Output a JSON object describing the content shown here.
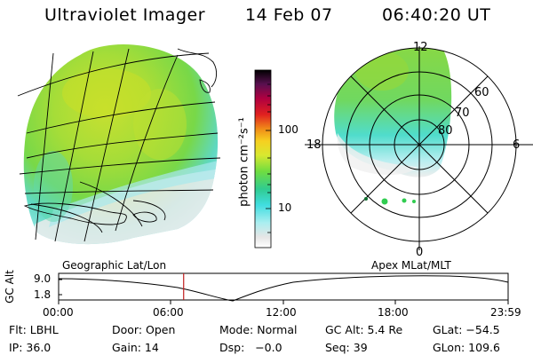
{
  "header": {
    "title": "Ultraviolet Imager",
    "date": "14 Feb 07",
    "time": "06:40:20 UT"
  },
  "colorbar": {
    "unit_label": "photon cm⁻²s⁻¹",
    "ticks": [
      "100",
      "10"
    ],
    "scale": "log",
    "colors": [
      "#ffffff",
      "#e6e6e6",
      "#aaeef0",
      "#40dde0",
      "#30cc90",
      "#70dd40",
      "#d8e830",
      "#f6d020",
      "#f08a18",
      "#e02020",
      "#b00040",
      "#5a1050",
      "#000000"
    ]
  },
  "geo_map": {
    "label": "Geographic Lat/Lon"
  },
  "polar_plot": {
    "label": "Apex  MLat/MLT",
    "mlt_labels": [
      "12",
      "18",
      "6",
      "0"
    ],
    "lat_labels": [
      "60",
      "70",
      "80"
    ]
  },
  "altitude_panel": {
    "ylabel": "GC Alt",
    "yticks": [
      "9.0",
      "1.8"
    ],
    "xticks": [
      "00:00",
      "06:00",
      "12:00",
      "18:00",
      "23:59"
    ],
    "current_time_hours": 6.67,
    "marker_color": "#c02020"
  },
  "status": {
    "flt": "Flt: LBHL",
    "door": "Door: Open",
    "mode": "Mode: Normal",
    "gcalt": "GC Alt: 5.4 Re",
    "glat": "GLat: −54.5",
    "ip": "IP: 36.0",
    "gain": "Gain: 14",
    "dsp": "Dsp:   −0.0",
    "seq": "Seq: 39",
    "glon": "GLon: 109.6"
  }
}
